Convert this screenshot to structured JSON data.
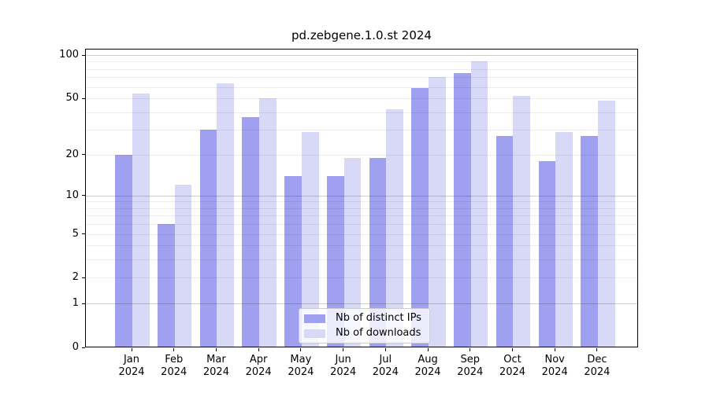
{
  "chart_data": {
    "type": "bar",
    "title": "pd.zebgene.1.0.st 2024",
    "categories": [
      "Jan",
      "Feb",
      "Mar",
      "Apr",
      "May",
      "Jun",
      "Jul",
      "Aug",
      "Sep",
      "Oct",
      "Nov",
      "Dec"
    ],
    "x_year": "2024",
    "series": [
      {
        "key": "ips",
        "name": "Nb of distinct IPs",
        "color": "#a0a0f0",
        "values": [
          20,
          6,
          30,
          37,
          14,
          14,
          19,
          59,
          75,
          27,
          18,
          27
        ]
      },
      {
        "key": "downloads",
        "name": "Nb of downloads",
        "color": "#d8d8f7",
        "values": [
          54,
          12,
          64,
          50,
          29,
          19,
          42,
          70,
          90,
          52,
          29,
          48
        ]
      }
    ],
    "y_scale": "log1p",
    "ylim": [
      0,
      110
    ],
    "y_ticks": [
      0,
      1,
      2,
      5,
      10,
      20,
      50,
      100
    ],
    "y_major_gridlines": [
      1,
      10,
      100
    ],
    "y_minor_gridlines": [
      2,
      3,
      4,
      5,
      6,
      7,
      8,
      9,
      20,
      30,
      40,
      50,
      60,
      70,
      80,
      90
    ],
    "grid": true,
    "legend_position": "lower center"
  },
  "legend": {
    "items": [
      "Nb of distinct IPs",
      "Nb of downloads"
    ]
  },
  "colors": {
    "ips_bar": "#a0a0f0",
    "downloads_bar": "#d8d8f7",
    "spine": "#000000",
    "grid_major": "#d0d0d0",
    "grid_minor": "#ededed",
    "legend_border": "#cccccc"
  }
}
